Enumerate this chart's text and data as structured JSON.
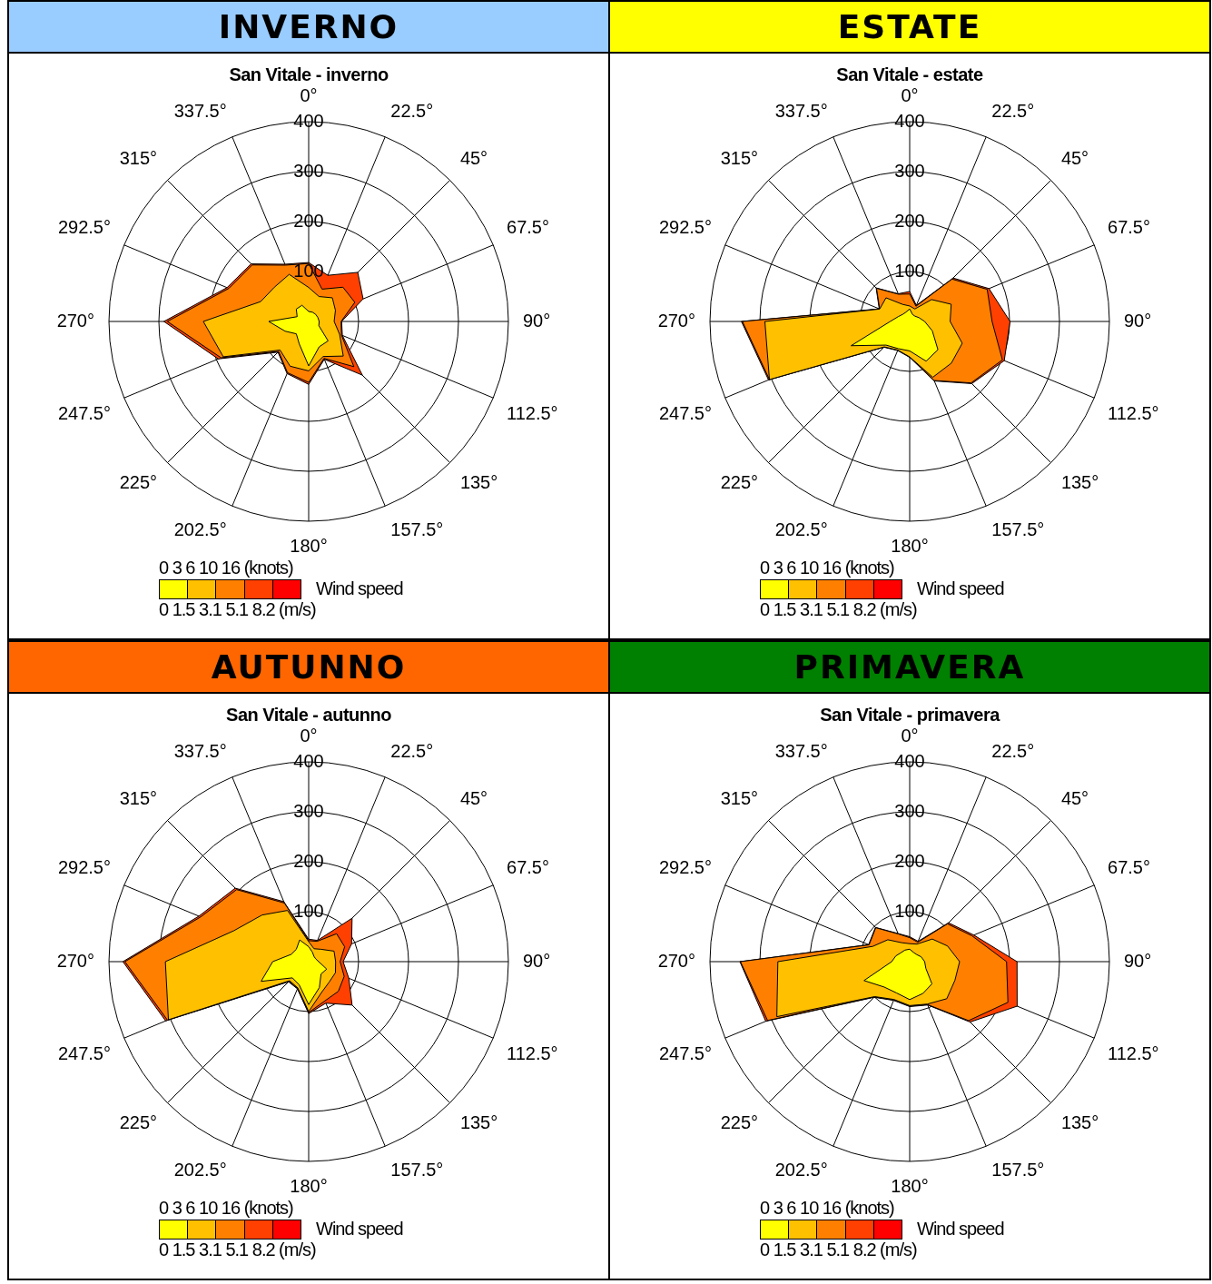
{
  "chart_data": [
    {
      "type": "radar",
      "title": "INVERNO",
      "subtitle": "San Vitale - inverno",
      "categories": [
        "0°",
        "22.5°",
        "45°",
        "67.5°",
        "90°",
        "112.5°",
        "135°",
        "157.5°",
        "180°",
        "202.5°",
        "225°",
        "247.5°",
        "270°",
        "292.5°",
        "315°",
        "337.5°"
      ],
      "ylim": [
        0,
        400
      ],
      "yticks": [
        100,
        200,
        300,
        400
      ],
      "grid": true,
      "marker": "none",
      "clabel": "Wind speed",
      "annotations": [
        "0 3 6 10 16 (knots)",
        "0 1.5 3.1 5.1 8.2 (m/s)"
      ],
      "series": [
        {
          "color": "#ffff00",
          "values": [
            20,
            20,
            20,
            20,
            21,
            22,
            55,
            55,
            89,
            49,
            35,
            51,
            80,
            25,
            35,
            35
          ]
        },
        {
          "color": "#ffc000",
          "values": [
            68,
            54,
            67,
            58,
            51,
            67,
            98,
            76,
            99,
            97,
            81,
            185,
            211,
            104,
            97,
            102
          ]
        },
        {
          "color": "#ff8000",
          "values": [
            116,
            70,
            97,
            100,
            65,
            71,
            128,
            80,
            122,
            111,
            85,
            190,
            283,
            173,
            160,
            122
          ]
        },
        {
          "color": "#ff4000",
          "values": [
            118,
            100,
            139,
            118,
            66,
            73,
            152,
            82,
            126,
            113,
            87,
            196,
            290,
            177,
            163,
            124
          ]
        },
        {
          "color": "#ff0000",
          "values": [
            null,
            null,
            null,
            null,
            null,
            null,
            null,
            null,
            null,
            null,
            null,
            null,
            null,
            null,
            null,
            null
          ]
        }
      ]
    },
    {
      "type": "radar",
      "title": "ESTATE",
      "subtitle": "San Vitale - estate",
      "categories": [
        "0°",
        "22.5°",
        "45°",
        "67.5°",
        "90°",
        "112.5°",
        "135°",
        "157.5°",
        "180°",
        "202.5°",
        "225°",
        "247.5°",
        "270°",
        "292.5°",
        "315°",
        "337.5°"
      ],
      "ylim": [
        0,
        400
      ],
      "yticks": [
        100,
        200,
        300,
        400
      ],
      "grid": true,
      "marker": "none",
      "clabel": "Wind speed",
      "annotations": [
        "0 3 6 10 16 (knots)",
        "0 1.5 3.1 5.1 8.2 (m/s)"
      ],
      "series": [
        {
          "color": "#ffff00",
          "values": [
            25,
            15,
            15,
            20,
            30,
            49,
            80,
            86,
            59,
            59,
            67,
            127,
            39,
            25,
            20,
            20
          ]
        },
        {
          "color": "#ffc000",
          "values": [
            31,
            27,
            62,
            90,
            81,
            114,
            118,
            121,
            71,
            62,
            72,
            304,
            290,
            65,
            67,
            37
          ]
        },
        {
          "color": "#ff8000",
          "values": [
            55,
            33,
            120,
            168,
            165,
            201,
            174,
            128,
            71,
            62,
            72,
            304,
            335,
            65,
            94,
            59
          ]
        },
        {
          "color": "#ff4000",
          "values": [
            60,
            35,
            123,
            172,
            201,
            205,
            176,
            129,
            72,
            63,
            73,
            306,
            337,
            66,
            95,
            60
          ]
        },
        {
          "color": "#ff0000",
          "values": [
            null,
            null,
            null,
            null,
            null,
            null,
            null,
            null,
            null,
            null,
            null,
            null,
            null,
            null,
            null,
            null
          ]
        }
      ]
    },
    {
      "type": "radar",
      "title": "AUTUNNO",
      "subtitle": "San Vitale - autunno",
      "categories": [
        "0°",
        "22.5°",
        "45°",
        "67.5°",
        "90°",
        "112.5°",
        "135°",
        "157.5°",
        "180°",
        "202.5°",
        "225°",
        "247.5°",
        "270°",
        "292.5°",
        "315°",
        "337.5°"
      ],
      "ylim": [
        0,
        400
      ],
      "yticks": [
        100,
        200,
        300,
        400
      ],
      "grid": true,
      "marker": "none",
      "clabel": "Wind speed",
      "annotations": [
        "0 3 6 10 16 (knots)",
        "0 1.5 3.1 5.1 8.2 (m/s)"
      ],
      "series": [
        {
          "color": "#ffff00",
          "values": [
            30,
            20,
            15,
            15,
            20,
            39,
            35,
            56,
            86,
            50,
            46,
            103,
            72,
            38,
            35,
            47
          ]
        },
        {
          "color": "#ffc000",
          "values": [
            40,
            28,
            35,
            55,
            54,
            58,
            58,
            67,
            100,
            57,
            54,
            304,
            287,
            162,
            132,
            111
          ]
        },
        {
          "color": "#ff8000",
          "values": [
            42,
            44,
            79,
            78,
            63,
            77,
            84,
            85,
            102,
            58,
            56,
            306,
            368,
            234,
            204,
            127
          ]
        },
        {
          "color": "#ff4000",
          "values": [
            45,
            46,
            123,
            93,
            69,
            87,
            123,
            90,
            104,
            59,
            57,
            310,
            372,
            238,
            208,
            130
          ]
        },
        {
          "color": "#ff0000",
          "values": [
            null,
            null,
            null,
            null,
            null,
            null,
            null,
            null,
            null,
            null,
            null,
            null,
            null,
            null,
            null,
            null
          ]
        }
      ]
    },
    {
      "type": "radar",
      "title": "PRIMAVERA",
      "subtitle": "San Vitale - primavera",
      "categories": [
        "0°",
        "22.5°",
        "45°",
        "67.5°",
        "90°",
        "112.5°",
        "135°",
        "157.5°",
        "180°",
        "202.5°",
        "225°",
        "247.5°",
        "270°",
        "292.5°",
        "315°",
        "337.5°"
      ],
      "ylim": [
        0,
        400
      ],
      "yticks": [
        100,
        200,
        300,
        400
      ],
      "grid": true,
      "marker": "none",
      "clabel": "Wind speed",
      "annotations": [
        "0 3 6 10 16 (knots)",
        "0 1.5 3.1 5.1 8.2 (m/s)"
      ],
      "series": [
        {
          "color": "#ffff00",
          "values": [
            25,
            20,
            20,
            25,
            30,
            35,
            63,
            69,
            76,
            68,
            72,
            99,
            36,
            30,
            25,
            25
          ]
        },
        {
          "color": "#ffc000",
          "values": [
            36,
            38,
            64,
            82,
            100,
            98,
            105,
            92,
            88,
            82,
            99,
            288,
            264,
            80,
            62,
            41
          ]
        },
        {
          "color": "#ff8000",
          "values": [
            48,
            42,
            107,
            135,
            194,
            213,
            167,
            93,
            89,
            83,
            100,
            308,
            339,
            88,
            96,
            60
          ]
        },
        {
          "color": "#ff4000",
          "values": [
            50,
            44,
            110,
            139,
            215,
            233,
            171,
            94,
            90,
            84,
            101,
            312,
            340,
            89,
            97,
            61
          ]
        },
        {
          "color": "#ff0000",
          "values": [
            null,
            null,
            null,
            null,
            null,
            null,
            null,
            null,
            null,
            null,
            null,
            null,
            null,
            null,
            null,
            null
          ]
        }
      ]
    }
  ]
}
